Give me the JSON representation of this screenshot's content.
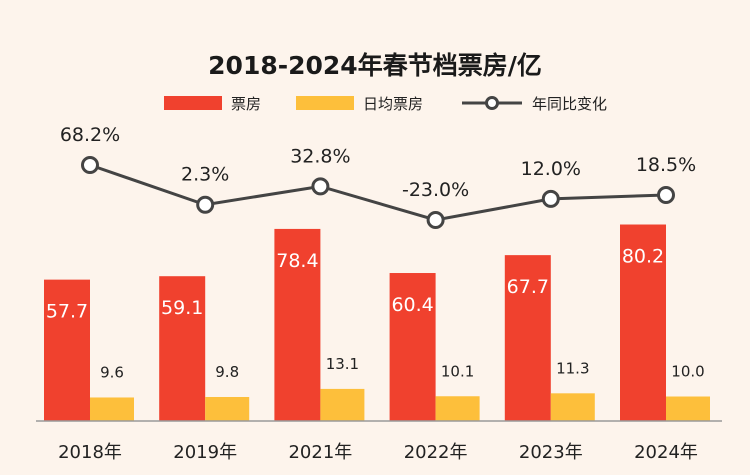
{
  "chart_data": {
    "type": "bar",
    "title": "2018-2024年春节档票房/亿",
    "categories": [
      "2018年",
      "2019年",
      "2021年",
      "2022年",
      "2023年",
      "2024年"
    ],
    "series": [
      {
        "name": "票房",
        "type": "bar",
        "color": "#f0412e",
        "values": [
          57.7,
          59.1,
          78.4,
          60.4,
          67.7,
          80.2
        ]
      },
      {
        "name": "日均票房",
        "type": "bar",
        "color": "#fdbf3b",
        "values": [
          9.6,
          9.8,
          13.1,
          10.1,
          11.3,
          10.0
        ]
      },
      {
        "name": "年同比变化",
        "type": "line",
        "color": "#444444",
        "unit": "%",
        "values": [
          68.2,
          2.3,
          32.8,
          -23.0,
          12.0,
          18.5
        ]
      }
    ],
    "value_labels": {
      "box_office": [
        "57.7",
        "59.1",
        "78.4",
        "60.4",
        "67.7",
        "80.2"
      ],
      "daily": [
        "9.6",
        "9.8",
        "13.1",
        "10.1",
        "11.3",
        "10.0"
      ],
      "yoy": [
        "68.2%",
        "2.3%",
        "32.8%",
        "-23.0%",
        "12.0%",
        "18.5%"
      ]
    },
    "legend": {
      "position": "top-center",
      "items": [
        "票房",
        "日均票房",
        "年同比变化"
      ]
    },
    "grid": false
  }
}
